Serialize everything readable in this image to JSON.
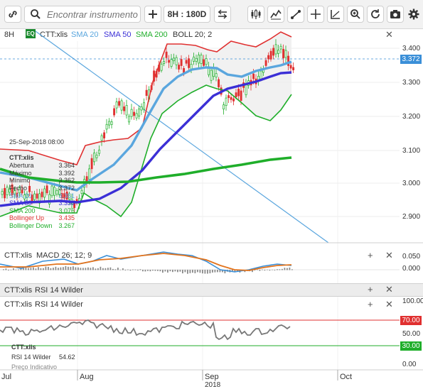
{
  "toolbar": {
    "search_placeholder": "Encontrar instrumento",
    "period_label": "8H : 180D",
    "icons": [
      "link-icon",
      "search-icon",
      "plus-icon",
      "compare-icon",
      "candles-icon",
      "line-chart-icon",
      "trendline-icon",
      "crosshair-icon",
      "channel-icon",
      "zoom-icon",
      "refresh-icon",
      "camera-icon",
      "gear-icon"
    ]
  },
  "main": {
    "interval": "8H",
    "badge": "EQ",
    "instrument": "CTT:xlis",
    "indicators": [
      {
        "label": "SMA 20",
        "color": "#5aa6de"
      },
      {
        "label": "SMA 50",
        "color": "#3b2fd6"
      },
      {
        "label": "SMA 200",
        "color": "#1fae2a"
      },
      {
        "label": "BOLL 20; 2",
        "color": "#333333"
      }
    ],
    "last_price": "3.372",
    "y_ticks": [
      "3.400",
      "3.300",
      "3.200",
      "3.100",
      "3.000",
      "2.900"
    ]
  },
  "hover": {
    "date": "25-Sep-2018 08:00",
    "instrument": "CTT:xlis",
    "rows": [
      {
        "label": "Abertura",
        "value": "3.364",
        "color": "#333333"
      },
      {
        "label": "Máximo",
        "value": "3.392",
        "color": "#333333"
      },
      {
        "label": "Mínimo",
        "value": "3.362",
        "color": "#333333"
      },
      {
        "label": "Fecho",
        "value": "3.372",
        "color": "#333333"
      },
      {
        "label": "SMA 20",
        "value": "3.351",
        "color": "#5aa6de"
      },
      {
        "label": "SMA 50",
        "value": "3.330",
        "color": "#3b2fd6"
      },
      {
        "label": "SMA 200",
        "value": "3.076",
        "color": "#1fae2a"
      },
      {
        "label": "Bollinger Up",
        "value": "3.435",
        "color": "#e03030"
      },
      {
        "label": "Bollinger Down",
        "value": "3.267",
        "color": "#1fae2a"
      }
    ]
  },
  "macd": {
    "instrument": "CTT:xlis",
    "label": "MACD 26; 12; 9",
    "y_ticks": [
      "0.050",
      "0.000"
    ]
  },
  "rsi_header": {
    "instrument": "CTT:xlis",
    "label": "RSI 14 Wilder"
  },
  "rsi": {
    "instrument": "CTT:xlis",
    "label": "RSI 14 Wilder",
    "hover_instrument": "CTT:xlis",
    "hover_label": "RSI 14 Wilder",
    "hover_value": "54.62",
    "price_note": "Preço Indicativo",
    "y_ticks": [
      "100.00",
      "50.00",
      "0.00"
    ],
    "upper_level": "70.00",
    "lower_level": "30.00"
  },
  "x_axis": {
    "labels": [
      "Jul",
      "Aug",
      "Sep",
      "Oct"
    ],
    "year": "2018"
  },
  "colors": {
    "bollinger": "#e03030",
    "sma20": "#5aa6de",
    "sma50": "#3b2fd6",
    "sma200": "#1fae2a",
    "up": "#1fae2a",
    "down": "#e03030",
    "trendline": "#5aa6de",
    "price_tag": "#3a8fd8"
  }
}
